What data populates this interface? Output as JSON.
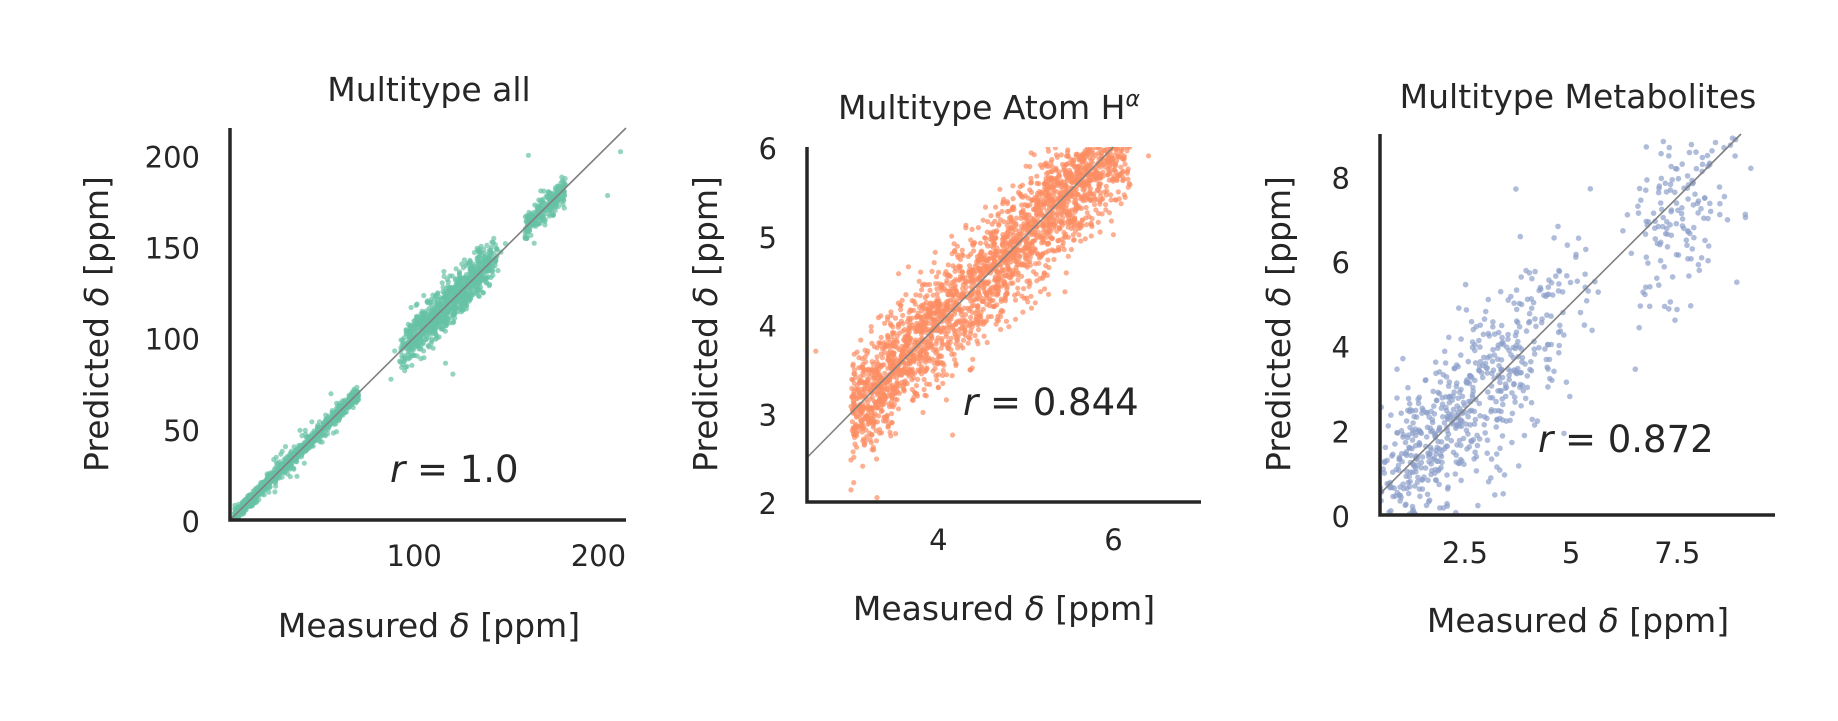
{
  "chart_data": [
    {
      "type": "scatter",
      "title": "Multitype all",
      "xlabel": "Measured δ [ppm]",
      "ylabel": "Predicted δ [ppm]",
      "xlim": [
        0,
        215
      ],
      "ylim": [
        0,
        215
      ],
      "xticks": [
        100,
        200
      ],
      "yticks": [
        0,
        50,
        100,
        150,
        200
      ],
      "color": "#66c2a5",
      "annotation": "r = 1.0",
      "r_value": "1.0",
      "clusters": [
        {
          "from": 2,
          "to": 70,
          "n": 900,
          "spread": 2.0,
          "jitter": 0.0
        },
        {
          "from": 20,
          "to": 60,
          "n": 60,
          "spread": 6.0,
          "jitter": 0.0
        },
        {
          "from": 95,
          "to": 142,
          "n": 900,
          "spread": 6.0,
          "jitter": 3.0
        },
        {
          "from": 160,
          "to": 182,
          "n": 220,
          "spread": 4.0,
          "jitter": 0.0
        }
      ],
      "outliers": [
        [
          212,
          202
        ],
        [
          205,
          178
        ],
        [
          162,
          200
        ],
        [
          117,
          86
        ],
        [
          121,
          80
        ]
      ],
      "reference_line": "y = x",
      "grid": false
    },
    {
      "type": "scatter",
      "title": "Multitype Atom Hα",
      "title_main": "Multitype Atom H",
      "title_sup": "α",
      "xlabel": "Measured δ [ppm]",
      "ylabel": "Predicted δ [ppm]",
      "xlim": [
        2.5,
        7.0
      ],
      "ylim": [
        2.0,
        6.0
      ],
      "xticks": [
        4,
        6
      ],
      "yticks": [
        2,
        3,
        4,
        5,
        6
      ],
      "color": "#fc8d62",
      "annotation": "r = 0.844",
      "r_value": "0.844",
      "clusters": [
        {
          "from": 3.0,
          "to": 6.2,
          "n": 2600,
          "spread": 0.32,
          "jitter": 0.0
        }
      ],
      "outliers": [
        [
          3.3,
          2.05
        ],
        [
          6.4,
          5.9
        ],
        [
          2.6,
          3.7
        ]
      ],
      "reference_line": "y = x",
      "grid": false
    },
    {
      "type": "scatter",
      "title": "Multitype Metabolites",
      "xlabel": "Measured δ [ppm]",
      "ylabel": "Predicted δ [ppm]",
      "xlim": [
        0.5,
        9.8
      ],
      "ylim": [
        0.0,
        9.0
      ],
      "xticks": [
        2.5,
        5.0,
        7.5
      ],
      "yticks": [
        0,
        2,
        4,
        6,
        8
      ],
      "color": "#8da0cb",
      "annotation": "r = 0.872",
      "r_value": "0.872",
      "clusters": [
        {
          "from": 0.6,
          "to": 2.0,
          "n": 260,
          "spread": 0.9,
          "jitter": 0.3
        },
        {
          "from": 2.0,
          "to": 4.2,
          "n": 330,
          "spread": 1.1,
          "jitter": 0.3
        },
        {
          "from": 4.5,
          "to": 5.5,
          "n": 40,
          "spread": 1.0,
          "jitter": 0.2
        },
        {
          "from": 6.8,
          "to": 8.3,
          "n": 170,
          "spread": 1.1,
          "jitter": 0.4
        }
      ],
      "outliers": [
        [
          8.8,
          8.9
        ],
        [
          3.7,
          7.7
        ],
        [
          3.4,
          0.5
        ],
        [
          9.1,
          7.1
        ],
        [
          8.9,
          5.5
        ]
      ],
      "reference_line": "y = x",
      "grid": false
    }
  ]
}
